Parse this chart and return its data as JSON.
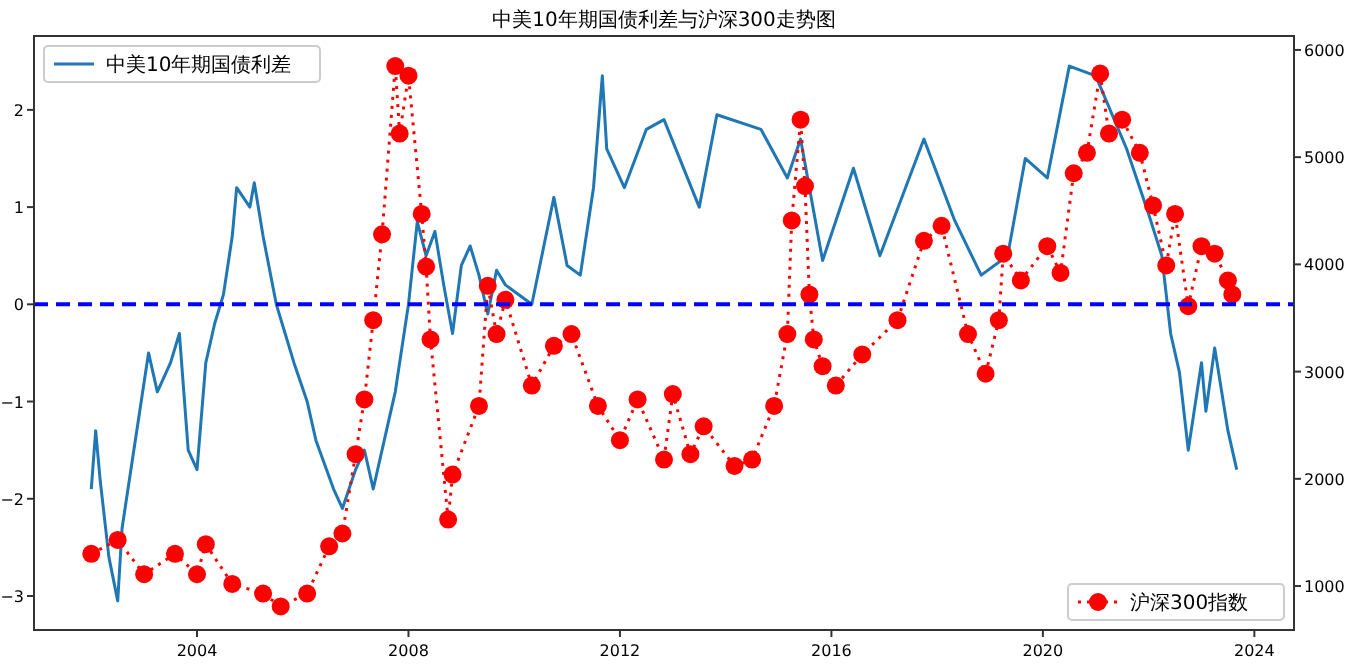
{
  "chart_data": {
    "type": "line",
    "title": "中美10年期国债利差与沪深300走势图",
    "xlim": [
      "2000-12",
      "2024-10"
    ],
    "xticks": [
      "2004",
      "2008",
      "2012",
      "2016",
      "2020",
      "2024"
    ],
    "ylim": [
      -3.35,
      2.76
    ],
    "yticks": [
      -3,
      -2,
      -1,
      0,
      1,
      2
    ],
    "y2lim": [
      590,
      6130
    ],
    "y2ticks": [
      1000,
      2000,
      3000,
      4000,
      5000,
      6000
    ],
    "grid": false,
    "legend": "top left",
    "ref_lines": [
      {
        "axis": "y",
        "value": 0,
        "color": "#0000ff",
        "line_style": "dashed"
      }
    ],
    "series": [
      {
        "name": "中美10年期国债利差",
        "color": "#1f77b4",
        "marker": "none",
        "line_style": "solid",
        "x": [
          "2002-01",
          "2002-02",
          "2002-03",
          "2002-05",
          "2002-07",
          "2002-08",
          "2002-10",
          "2003-01",
          "2003-02",
          "2003-04",
          "2003-07",
          "2003-09",
          "2003-11",
          "2004-01",
          "2004-03",
          "2004-05",
          "2004-07",
          "2004-09",
          "2004-10",
          "2005-01",
          "2005-02",
          "2005-04",
          "2005-07",
          "2005-09",
          "2005-11",
          "2006-02",
          "2006-04",
          "2006-08",
          "2006-10",
          "2007-01",
          "2007-03",
          "2007-05",
          "2007-08",
          "2007-10",
          "2008-01",
          "2008-03",
          "2008-05",
          "2008-07",
          "2008-09",
          "2008-11",
          "2009-01",
          "2009-03",
          "2009-05",
          "2009-07",
          "2009-09",
          "2009-11",
          "2010-05",
          "2010-10",
          "2011-01",
          "2011-04",
          "2011-07",
          "2011-09",
          "2011-10",
          "2012-02",
          "2012-07",
          "2012-11",
          "2013-07",
          "2013-11",
          "2014-09",
          "2015-03",
          "2015-06",
          "2015-11",
          "2016-06",
          "2016-12",
          "2017-10",
          "2018-05",
          "2018-11",
          "2019-05",
          "2019-09",
          "2020-02",
          "2020-07",
          "2021-01",
          "2021-08",
          "2022-01",
          "2022-04",
          "2022-06",
          "2022-08",
          "2022-10",
          "2023-01",
          "2023-02",
          "2023-04",
          "2023-07",
          "2023-09"
        ],
        "values": [
          -1.9,
          -1.3,
          -1.8,
          -2.6,
          -3.05,
          -2.3,
          -1.7,
          -0.8,
          -0.5,
          -0.9,
          -0.6,
          -0.3,
          -1.5,
          -1.7,
          -0.6,
          -0.2,
          0.1,
          0.7,
          1.2,
          1.0,
          1.25,
          0.7,
          0.0,
          -0.3,
          -0.6,
          -1.0,
          -1.4,
          -1.9,
          -2.1,
          -1.7,
          -1.5,
          -1.9,
          -1.3,
          -0.9,
          0.0,
          0.85,
          0.5,
          0.75,
          0.2,
          -0.3,
          0.4,
          0.6,
          0.3,
          -0.1,
          0.35,
          0.2,
          0.0,
          1.1,
          0.4,
          0.3,
          1.2,
          2.35,
          1.6,
          1.2,
          1.8,
          1.9,
          1.0,
          1.95,
          1.8,
          1.3,
          1.7,
          0.45,
          1.4,
          0.5,
          1.7,
          0.86,
          0.3,
          0.5,
          1.5,
          1.3,
          2.45,
          2.35,
          1.6,
          0.93,
          0.5,
          -0.3,
          -0.7,
          -1.5,
          -0.6,
          -1.1,
          -0.45,
          -1.3,
          -1.7
        ]
      },
      {
        "name": "沪深300指数",
        "axis": "y2",
        "color": "#ff0000",
        "marker": "circle",
        "line_style": "dotted",
        "x": [
          "2002-01",
          "2002-07",
          "2003-01",
          "2003-08",
          "2004-01",
          "2004-03",
          "2004-09",
          "2005-04",
          "2005-08",
          "2006-02",
          "2006-07",
          "2006-10",
          "2007-01",
          "2007-03",
          "2007-05",
          "2007-07",
          "2007-10",
          "2007-11",
          "2008-01",
          "2008-04",
          "2008-05",
          "2008-06",
          "2008-10",
          "2008-11",
          "2009-05",
          "2009-07",
          "2009-09",
          "2009-11",
          "2010-05",
          "2010-10",
          "2011-02",
          "2011-08",
          "2012-01",
          "2012-05",
          "2012-11",
          "2013-01",
          "2013-05",
          "2013-08",
          "2014-03",
          "2014-07",
          "2014-12",
          "2015-03",
          "2015-04",
          "2015-06",
          "2015-07",
          "2015-08",
          "2015-09",
          "2015-11",
          "2016-02",
          "2016-08",
          "2017-04",
          "2017-10",
          "2018-02",
          "2018-08",
          "2018-12",
          "2019-03",
          "2019-04",
          "2019-08",
          "2020-02",
          "2020-05",
          "2020-08",
          "2020-11",
          "2021-02",
          "2021-04",
          "2021-07",
          "2021-11",
          "2022-02",
          "2022-05",
          "2022-07",
          "2022-10",
          "2023-01",
          "2023-04",
          "2023-07",
          "2023-08"
        ],
        "values": [
          1300,
          1430,
          1110,
          1300,
          1110,
          1390,
          1020,
          930,
          810,
          930,
          1370,
          1490,
          2230,
          2740,
          3480,
          4280,
          5850,
          5220,
          5760,
          4470,
          3980,
          3300,
          1620,
          2040,
          2680,
          3800,
          3350,
          3670,
          2870,
          3240,
          3350,
          2680,
          2360,
          2740,
          2180,
          2790,
          2230,
          2490,
          2120,
          2180,
          2680,
          3350,
          4410,
          5350,
          4730,
          3720,
          3300,
          3050,
          2870,
          3160,
          3480,
          4220,
          4360,
          3350,
          2980,
          3480,
          4100,
          3850,
          4170,
          3920,
          4850,
          5040,
          5780,
          5220,
          5350,
          5040,
          4550,
          3990,
          4470,
          3610,
          4170,
          4100,
          3850,
          3720
        ]
      }
    ]
  }
}
